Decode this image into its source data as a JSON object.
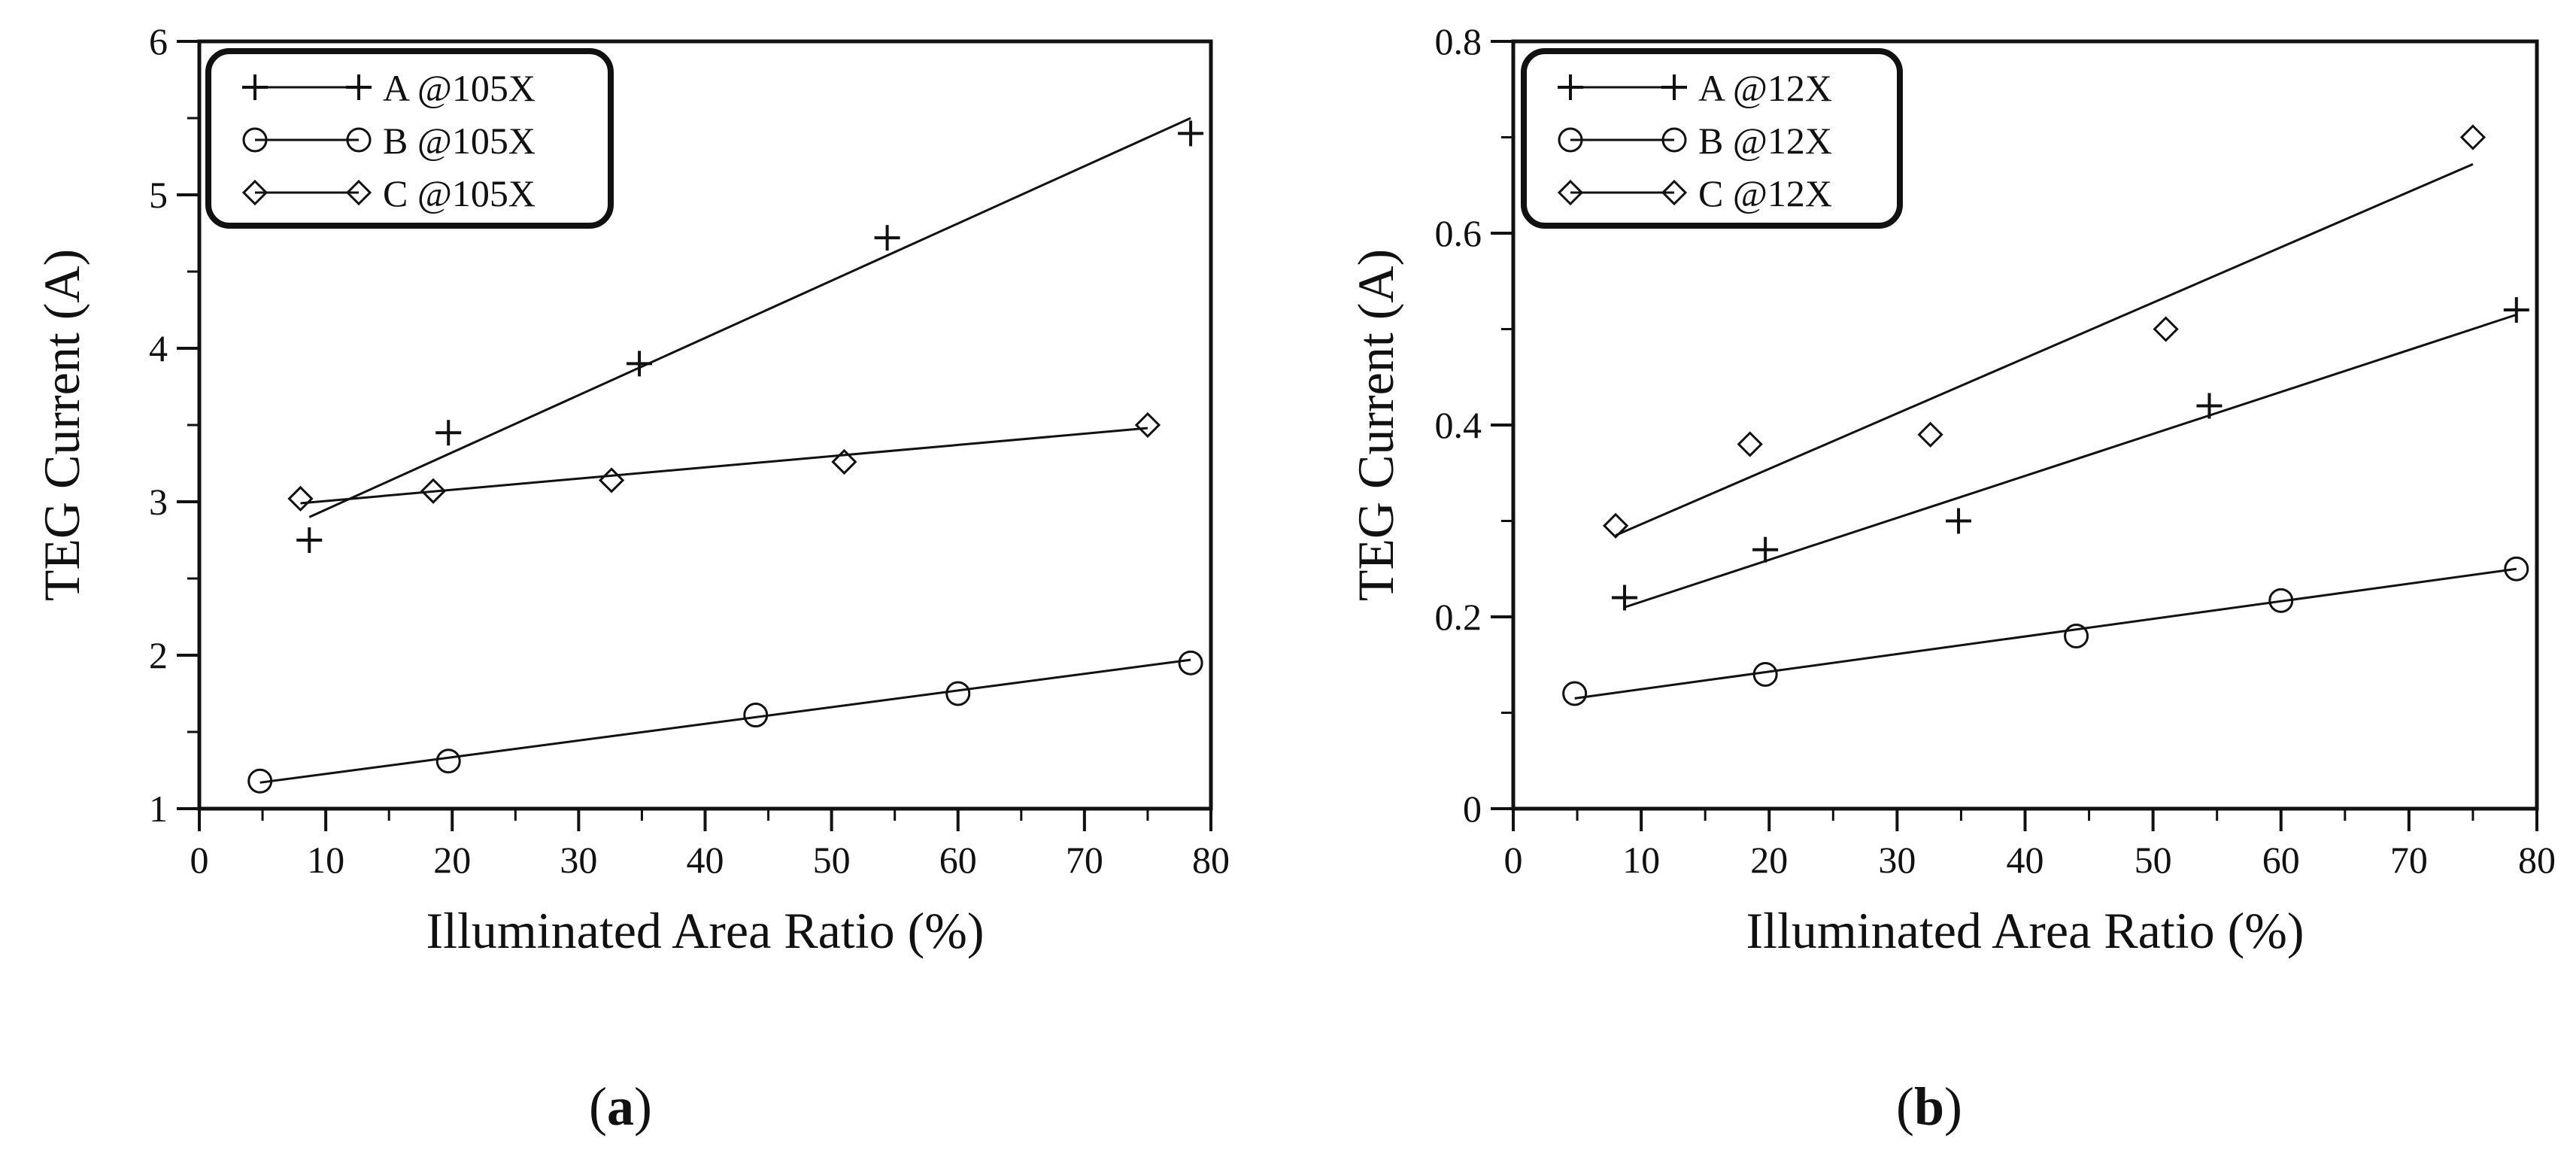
{
  "chart_data": [
    {
      "type": "scatter",
      "panel_label": "a",
      "xlabel": "Illuminated Area Ratio (%)",
      "ylabel": "TEG Current (A)",
      "xlim": [
        0,
        80
      ],
      "ylim": [
        1,
        6
      ],
      "xticks": [
        "0",
        "10",
        "20",
        "30",
        "40",
        "50",
        "60",
        "70",
        "80"
      ],
      "yticks": [
        "1",
        "2",
        "3",
        "4",
        "5",
        "6"
      ],
      "legend_position": "top-left",
      "series": [
        {
          "name": "A @105X",
          "marker": "plus",
          "points": [
            [
              8.7,
              2.75
            ],
            [
              19.7,
              3.45
            ],
            [
              34.8,
              3.9
            ],
            [
              54.4,
              4.72
            ],
            [
              78.4,
              5.4
            ]
          ],
          "fit": [
            [
              8.7,
              2.9
            ],
            [
              78.4,
              5.5
            ]
          ]
        },
        {
          "name": "B @105X",
          "marker": "circle",
          "points": [
            [
              4.8,
              1.18
            ],
            [
              19.7,
              1.31
            ],
            [
              44.0,
              1.61
            ],
            [
              60.0,
              1.75
            ],
            [
              78.4,
              1.95
            ]
          ],
          "fit": [
            [
              4.8,
              1.17
            ],
            [
              78.4,
              1.97
            ]
          ]
        },
        {
          "name": "C @105X",
          "marker": "diamond",
          "points": [
            [
              8.0,
              3.02
            ],
            [
              18.5,
              3.07
            ],
            [
              32.6,
              3.14
            ],
            [
              51.0,
              3.26
            ],
            [
              75.0,
              3.5
            ]
          ],
          "fit": [
            [
              8.0,
              2.99
            ],
            [
              75.0,
              3.48
            ]
          ]
        }
      ]
    },
    {
      "type": "scatter",
      "panel_label": "b",
      "xlabel": "Illuminated Area Ratio (%)",
      "ylabel": "TEG Current (A)",
      "xlim": [
        0,
        80
      ],
      "ylim": [
        0,
        0.8
      ],
      "xticks": [
        "0",
        "10",
        "20",
        "30",
        "40",
        "50",
        "60",
        "70",
        "80"
      ],
      "yticks": [
        "0",
        "0.2",
        "0.4",
        "0.6",
        "0.8"
      ],
      "legend_position": "top-left",
      "series": [
        {
          "name": "A @12X",
          "marker": "plus",
          "points": [
            [
              8.7,
              0.22
            ],
            [
              19.7,
              0.27
            ],
            [
              34.8,
              0.3
            ],
            [
              54.4,
              0.42
            ],
            [
              78.4,
              0.52
            ]
          ],
          "fit": [
            [
              8.7,
              0.21
            ],
            [
              78.4,
              0.515
            ]
          ]
        },
        {
          "name": "B @12X",
          "marker": "circle",
          "points": [
            [
              4.8,
              0.12
            ],
            [
              19.7,
              0.14
            ],
            [
              44.0,
              0.18
            ],
            [
              60.0,
              0.217
            ],
            [
              78.4,
              0.25
            ]
          ],
          "fit": [
            [
              4.8,
              0.115
            ],
            [
              78.4,
              0.25
            ]
          ]
        },
        {
          "name": "C @12X",
          "marker": "diamond",
          "points": [
            [
              8.0,
              0.295
            ],
            [
              18.5,
              0.38
            ],
            [
              32.6,
              0.39
            ],
            [
              51.0,
              0.5
            ],
            [
              75.0,
              0.7
            ]
          ],
          "fit": [
            [
              8.0,
              0.285
            ],
            [
              75.0,
              0.672
            ]
          ]
        }
      ]
    }
  ]
}
